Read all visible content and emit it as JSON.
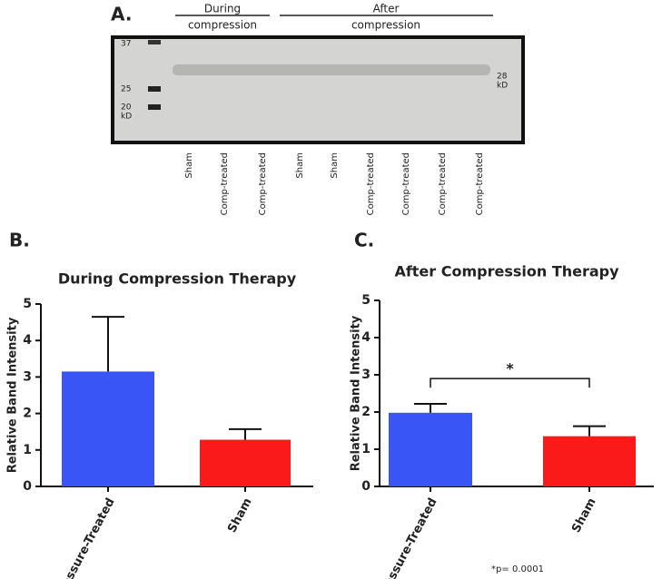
{
  "figure": {
    "panels": [
      "A.",
      "B.",
      "C."
    ]
  },
  "blot": {
    "groups": [
      "During",
      "compression",
      "After",
      "compression"
    ],
    "markers": [
      "37",
      "25",
      "20",
      "kD"
    ],
    "band_size": [
      "28",
      "kD"
    ],
    "lanes": [
      "Sham",
      "Comp-treated",
      "Comp-treated",
      "Sham",
      "Sham",
      "Comp-treated",
      "Comp-treated",
      "Comp-treated",
      "Comp-treated"
    ]
  },
  "chart_data": [
    {
      "type": "bar",
      "title": "During Compression Therapy",
      "ylabel": "Relative Band Intensity",
      "categories": [
        "Pressure-Treated",
        "Sham"
      ],
      "values": [
        3.15,
        1.28
      ],
      "errors": [
        1.5,
        0.29
      ],
      "colors": [
        "#3a55f5",
        "#fb1a1a"
      ],
      "ylim": [
        0,
        5
      ],
      "yticks": [
        0,
        1,
        2,
        3,
        4,
        5
      ]
    },
    {
      "type": "bar",
      "title": "After Compression Therapy",
      "ylabel": "Relative Band Intensity",
      "categories": [
        "Pressure-Treated",
        "Sham"
      ],
      "values": [
        1.98,
        1.35
      ],
      "errors": [
        0.24,
        0.27
      ],
      "colors": [
        "#3a55f5",
        "#fb1a1a"
      ],
      "ylim": [
        0,
        5
      ],
      "yticks": [
        0,
        1,
        2,
        3,
        4,
        5
      ],
      "significance": "*",
      "note": "*p= 0.0001"
    }
  ]
}
